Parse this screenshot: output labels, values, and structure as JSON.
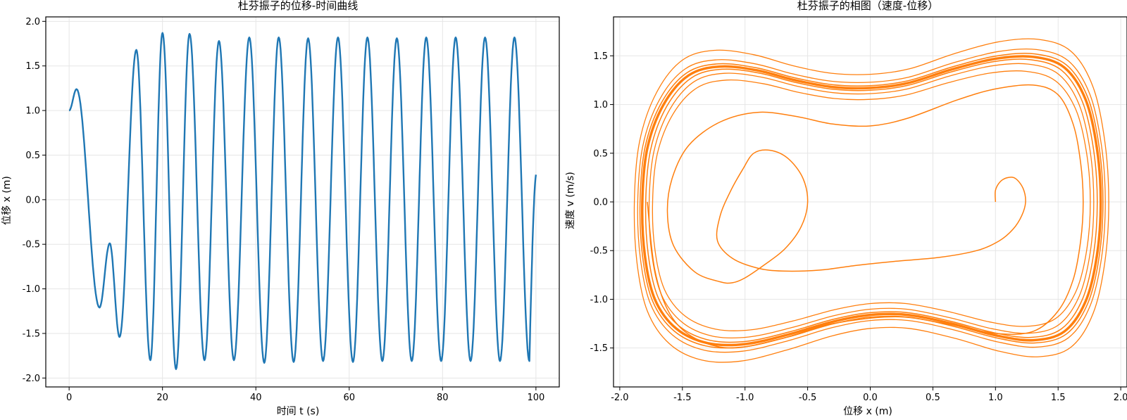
{
  "chart_data": [
    {
      "type": "line",
      "title": "杜芬振子的位移-时间曲线",
      "xlabel": "时间 t (s)",
      "ylabel": "位移 x (m)",
      "xlim": [
        -5,
        105
      ],
      "ylim": [
        -2.1,
        2.05
      ],
      "xticks": [
        0,
        20,
        40,
        60,
        80,
        100
      ],
      "yticks": [
        -2.0,
        -1.5,
        -1.0,
        -0.5,
        0.0,
        0.5,
        1.0,
        1.5,
        2.0
      ],
      "grid": true,
      "color": "#1f77b4",
      "extrema": [
        [
          0,
          1.0
        ],
        [
          1.6,
          1.24
        ],
        [
          6.5,
          -1.21
        ],
        [
          8.7,
          -0.49
        ],
        [
          10.8,
          -1.54
        ],
        [
          14.4,
          1.68
        ],
        [
          17.4,
          -1.8
        ],
        [
          20.0,
          1.87
        ],
        [
          22.9,
          -1.9
        ],
        [
          25.8,
          1.86
        ],
        [
          29.0,
          -1.8
        ],
        [
          32.1,
          1.78
        ],
        [
          35.3,
          -1.8
        ],
        [
          38.6,
          1.82
        ],
        [
          41.8,
          -1.83
        ],
        [
          44.9,
          1.82
        ],
        [
          48.1,
          -1.82
        ],
        [
          51.2,
          1.81
        ],
        [
          54.4,
          -1.81
        ],
        [
          57.6,
          1.82
        ],
        [
          60.8,
          -1.82
        ],
        [
          63.9,
          1.82
        ],
        [
          67.1,
          -1.81
        ],
        [
          70.2,
          1.81
        ],
        [
          73.4,
          -1.81
        ],
        [
          76.5,
          1.82
        ],
        [
          79.7,
          -1.81
        ],
        [
          82.8,
          1.82
        ],
        [
          86.0,
          -1.81
        ],
        [
          89.1,
          1.82
        ],
        [
          92.3,
          -1.81
        ],
        [
          95.4,
          1.82
        ],
        [
          98.6,
          -1.81
        ],
        [
          100.0,
          0.28
        ]
      ]
    },
    {
      "type": "line",
      "title": "杜芬振子的相图（速度-位移）",
      "xlabel": "位移 x (m)",
      "ylabel": "速度 v (m/s)",
      "xlim": [
        -2.05,
        2.05
      ],
      "ylim": [
        -1.9,
        1.9
      ],
      "xticks": [
        -2.0,
        -1.5,
        -1.0,
        -0.5,
        0.0,
        0.5,
        1.0,
        1.5,
        2.0
      ],
      "yticks": [
        -1.5,
        -1.0,
        -0.5,
        0.0,
        0.5,
        1.0,
        1.5
      ],
      "grid": true,
      "color": "#ff7f0e",
      "transient": [
        [
          1.0,
          0.0
        ],
        [
          1.0,
          0.12
        ],
        [
          1.04,
          0.21
        ],
        [
          1.1,
          0.25
        ],
        [
          1.16,
          0.24
        ],
        [
          1.22,
          0.14
        ],
        [
          1.24,
          0.0
        ],
        [
          1.21,
          -0.14
        ],
        [
          1.14,
          -0.28
        ],
        [
          1.03,
          -0.4
        ],
        [
          0.85,
          -0.5
        ],
        [
          0.55,
          -0.57
        ],
        [
          0.2,
          -0.61
        ],
        [
          -0.1,
          -0.65
        ],
        [
          -0.4,
          -0.7
        ],
        [
          -0.7,
          -0.71
        ],
        [
          -0.9,
          -0.68
        ],
        [
          -1.1,
          -0.58
        ],
        [
          -1.22,
          -0.4
        ],
        [
          -1.2,
          -0.15
        ],
        [
          -1.12,
          0.1
        ],
        [
          -1.02,
          0.33
        ],
        [
          -0.93,
          0.5
        ],
        [
          -0.8,
          0.53
        ],
        [
          -0.66,
          0.45
        ],
        [
          -0.54,
          0.25
        ],
        [
          -0.5,
          0.0
        ],
        [
          -0.55,
          -0.25
        ],
        [
          -0.68,
          -0.48
        ],
        [
          -0.85,
          -0.65
        ],
        [
          -1.0,
          -0.78
        ],
        [
          -1.1,
          -0.83
        ],
        [
          -1.2,
          -0.82
        ],
        [
          -1.4,
          -0.72
        ],
        [
          -1.57,
          -0.45
        ],
        [
          -1.62,
          -0.1
        ],
        [
          -1.58,
          0.25
        ],
        [
          -1.45,
          0.58
        ],
        [
          -1.2,
          0.82
        ],
        [
          -0.9,
          0.92
        ],
        [
          -0.6,
          0.88
        ],
        [
          -0.3,
          0.8
        ],
        [
          0.0,
          0.78
        ],
        [
          0.3,
          0.86
        ],
        [
          0.7,
          1.05
        ],
        [
          1.0,
          1.16
        ],
        [
          1.3,
          1.2
        ],
        [
          1.5,
          1.1
        ],
        [
          1.62,
          0.8
        ],
        [
          1.68,
          0.4
        ],
        [
          1.7,
          0.0
        ],
        [
          1.68,
          -0.4
        ],
        [
          1.62,
          -0.8
        ],
        [
          1.5,
          -1.12
        ],
        [
          1.3,
          -1.33
        ],
        [
          1.0,
          -1.35
        ],
        [
          0.6,
          -1.25
        ],
        [
          0.2,
          -1.18
        ],
        [
          -0.3,
          -1.25
        ],
        [
          -0.7,
          -1.4
        ],
        [
          -1.1,
          -1.5
        ],
        [
          -1.4,
          -1.4
        ],
        [
          -1.6,
          -1.15
        ],
        [
          -1.72,
          -0.7
        ],
        [
          -1.78,
          0.0
        ]
      ],
      "attractor_loop": [
        [
          -1.82,
          0.0
        ],
        [
          -1.78,
          0.55
        ],
        [
          -1.65,
          1.0
        ],
        [
          -1.45,
          1.3
        ],
        [
          -1.2,
          1.39
        ],
        [
          -0.9,
          1.35
        ],
        [
          -0.6,
          1.25
        ],
        [
          -0.3,
          1.18
        ],
        [
          0.0,
          1.17
        ],
        [
          0.3,
          1.22
        ],
        [
          0.65,
          1.36
        ],
        [
          1.0,
          1.47
        ],
        [
          1.3,
          1.49
        ],
        [
          1.55,
          1.38
        ],
        [
          1.72,
          1.05
        ],
        [
          1.81,
          0.55
        ],
        [
          1.84,
          0.0
        ],
        [
          1.81,
          -0.55
        ],
        [
          1.72,
          -1.02
        ],
        [
          1.55,
          -1.33
        ],
        [
          1.3,
          -1.42
        ],
        [
          1.0,
          -1.37
        ],
        [
          0.65,
          -1.25
        ],
        [
          0.3,
          -1.16
        ],
        [
          0.0,
          -1.16
        ],
        [
          -0.3,
          -1.23
        ],
        [
          -0.65,
          -1.36
        ],
        [
          -1.0,
          -1.46
        ],
        [
          -1.3,
          -1.45
        ],
        [
          -1.55,
          -1.3
        ],
        [
          -1.72,
          -1.0
        ],
        [
          -1.8,
          -0.55
        ],
        [
          -1.82,
          0.0
        ]
      ],
      "loop_variants": [
        {
          "sx": 1.0,
          "sy": 1.0,
          "w": 3.5
        },
        {
          "sx": 1.01,
          "sy": 1.02,
          "w": 1.5
        },
        {
          "sx": 0.985,
          "sy": 0.98,
          "w": 1.5
        },
        {
          "sx": 1.02,
          "sy": 1.05,
          "w": 1.3
        },
        {
          "sx": 0.97,
          "sy": 0.95,
          "w": 1.3
        },
        {
          "sx": 1.035,
          "sy": 1.12,
          "w": 1.3
        },
        {
          "sx": 0.955,
          "sy": 0.9,
          "w": 1.3
        }
      ]
    }
  ]
}
